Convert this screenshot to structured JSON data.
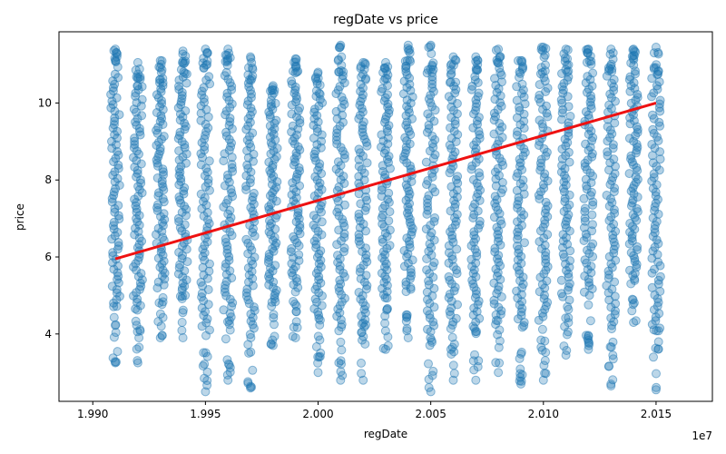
{
  "chart_data": {
    "type": "scatter",
    "title": "regDate vs price",
    "xlabel": "regDate",
    "ylabel": "price",
    "x_offset_text": "1e7",
    "xlim": [
      19885000,
      20175000
    ],
    "ylim": [
      2.25,
      11.85
    ],
    "x_ticks": [
      19900000,
      19950000,
      20000000,
      20050000,
      20100000,
      20150000
    ],
    "x_tick_labels": [
      "1.990",
      "1.995",
      "2.000",
      "2.005",
      "2.010",
      "2.015"
    ],
    "y_ticks": [
      4,
      6,
      8,
      10
    ],
    "y_tick_labels": [
      "4",
      "6",
      "8",
      "10"
    ],
    "grid": false,
    "colors": {
      "points": "#1f77b4",
      "trend": "#ee1111",
      "axes": "#000000"
    },
    "series": [
      {
        "type": "scatter",
        "alpha": 0.35,
        "columns": [
          {
            "x": 19910000,
            "ymin": 3.25,
            "ymax": 11.4
          },
          {
            "x": 19920000,
            "ymin": 3.25,
            "ymax": 11.05
          },
          {
            "x": 19930000,
            "ymin": 3.9,
            "ymax": 11.1
          },
          {
            "x": 19940000,
            "ymin": 3.9,
            "ymax": 11.35
          },
          {
            "x": 19950000,
            "ymin": 2.5,
            "ymax": 11.4
          },
          {
            "x": 19960000,
            "ymin": 2.8,
            "ymax": 11.4
          },
          {
            "x": 19970000,
            "ymin": 2.6,
            "ymax": 11.2
          },
          {
            "x": 19980000,
            "ymin": 3.7,
            "ymax": 10.45
          },
          {
            "x": 19990000,
            "ymin": 3.9,
            "ymax": 11.15
          },
          {
            "x": 20000000,
            "ymin": 3.0,
            "ymax": 10.8
          },
          {
            "x": 20010000,
            "ymin": 2.8,
            "ymax": 11.5
          },
          {
            "x": 20020000,
            "ymin": 2.8,
            "ymax": 11.05
          },
          {
            "x": 20030000,
            "ymin": 3.6,
            "ymax": 11.05
          },
          {
            "x": 20040000,
            "ymin": 3.9,
            "ymax": 11.5
          },
          {
            "x": 20050000,
            "ymin": 2.5,
            "ymax": 11.5
          },
          {
            "x": 20060000,
            "ymin": 2.8,
            "ymax": 11.2
          },
          {
            "x": 20070000,
            "ymin": 2.8,
            "ymax": 11.2
          },
          {
            "x": 20080000,
            "ymin": 3.0,
            "ymax": 11.4
          },
          {
            "x": 20090000,
            "ymin": 2.7,
            "ymax": 11.1
          },
          {
            "x": 20100000,
            "ymin": 2.8,
            "ymax": 11.45
          },
          {
            "x": 20110000,
            "ymin": 3.45,
            "ymax": 11.4
          },
          {
            "x": 20120000,
            "ymin": 3.6,
            "ymax": 11.4
          },
          {
            "x": 20130000,
            "ymin": 2.65,
            "ymax": 11.4
          },
          {
            "x": 20140000,
            "ymin": 4.3,
            "ymax": 11.4
          },
          {
            "x": 20150000,
            "ymin": 2.55,
            "ymax": 11.45
          }
        ]
      },
      {
        "type": "line",
        "x": [
          19910000,
          20150000
        ],
        "y": [
          5.95,
          10.0
        ]
      }
    ]
  }
}
